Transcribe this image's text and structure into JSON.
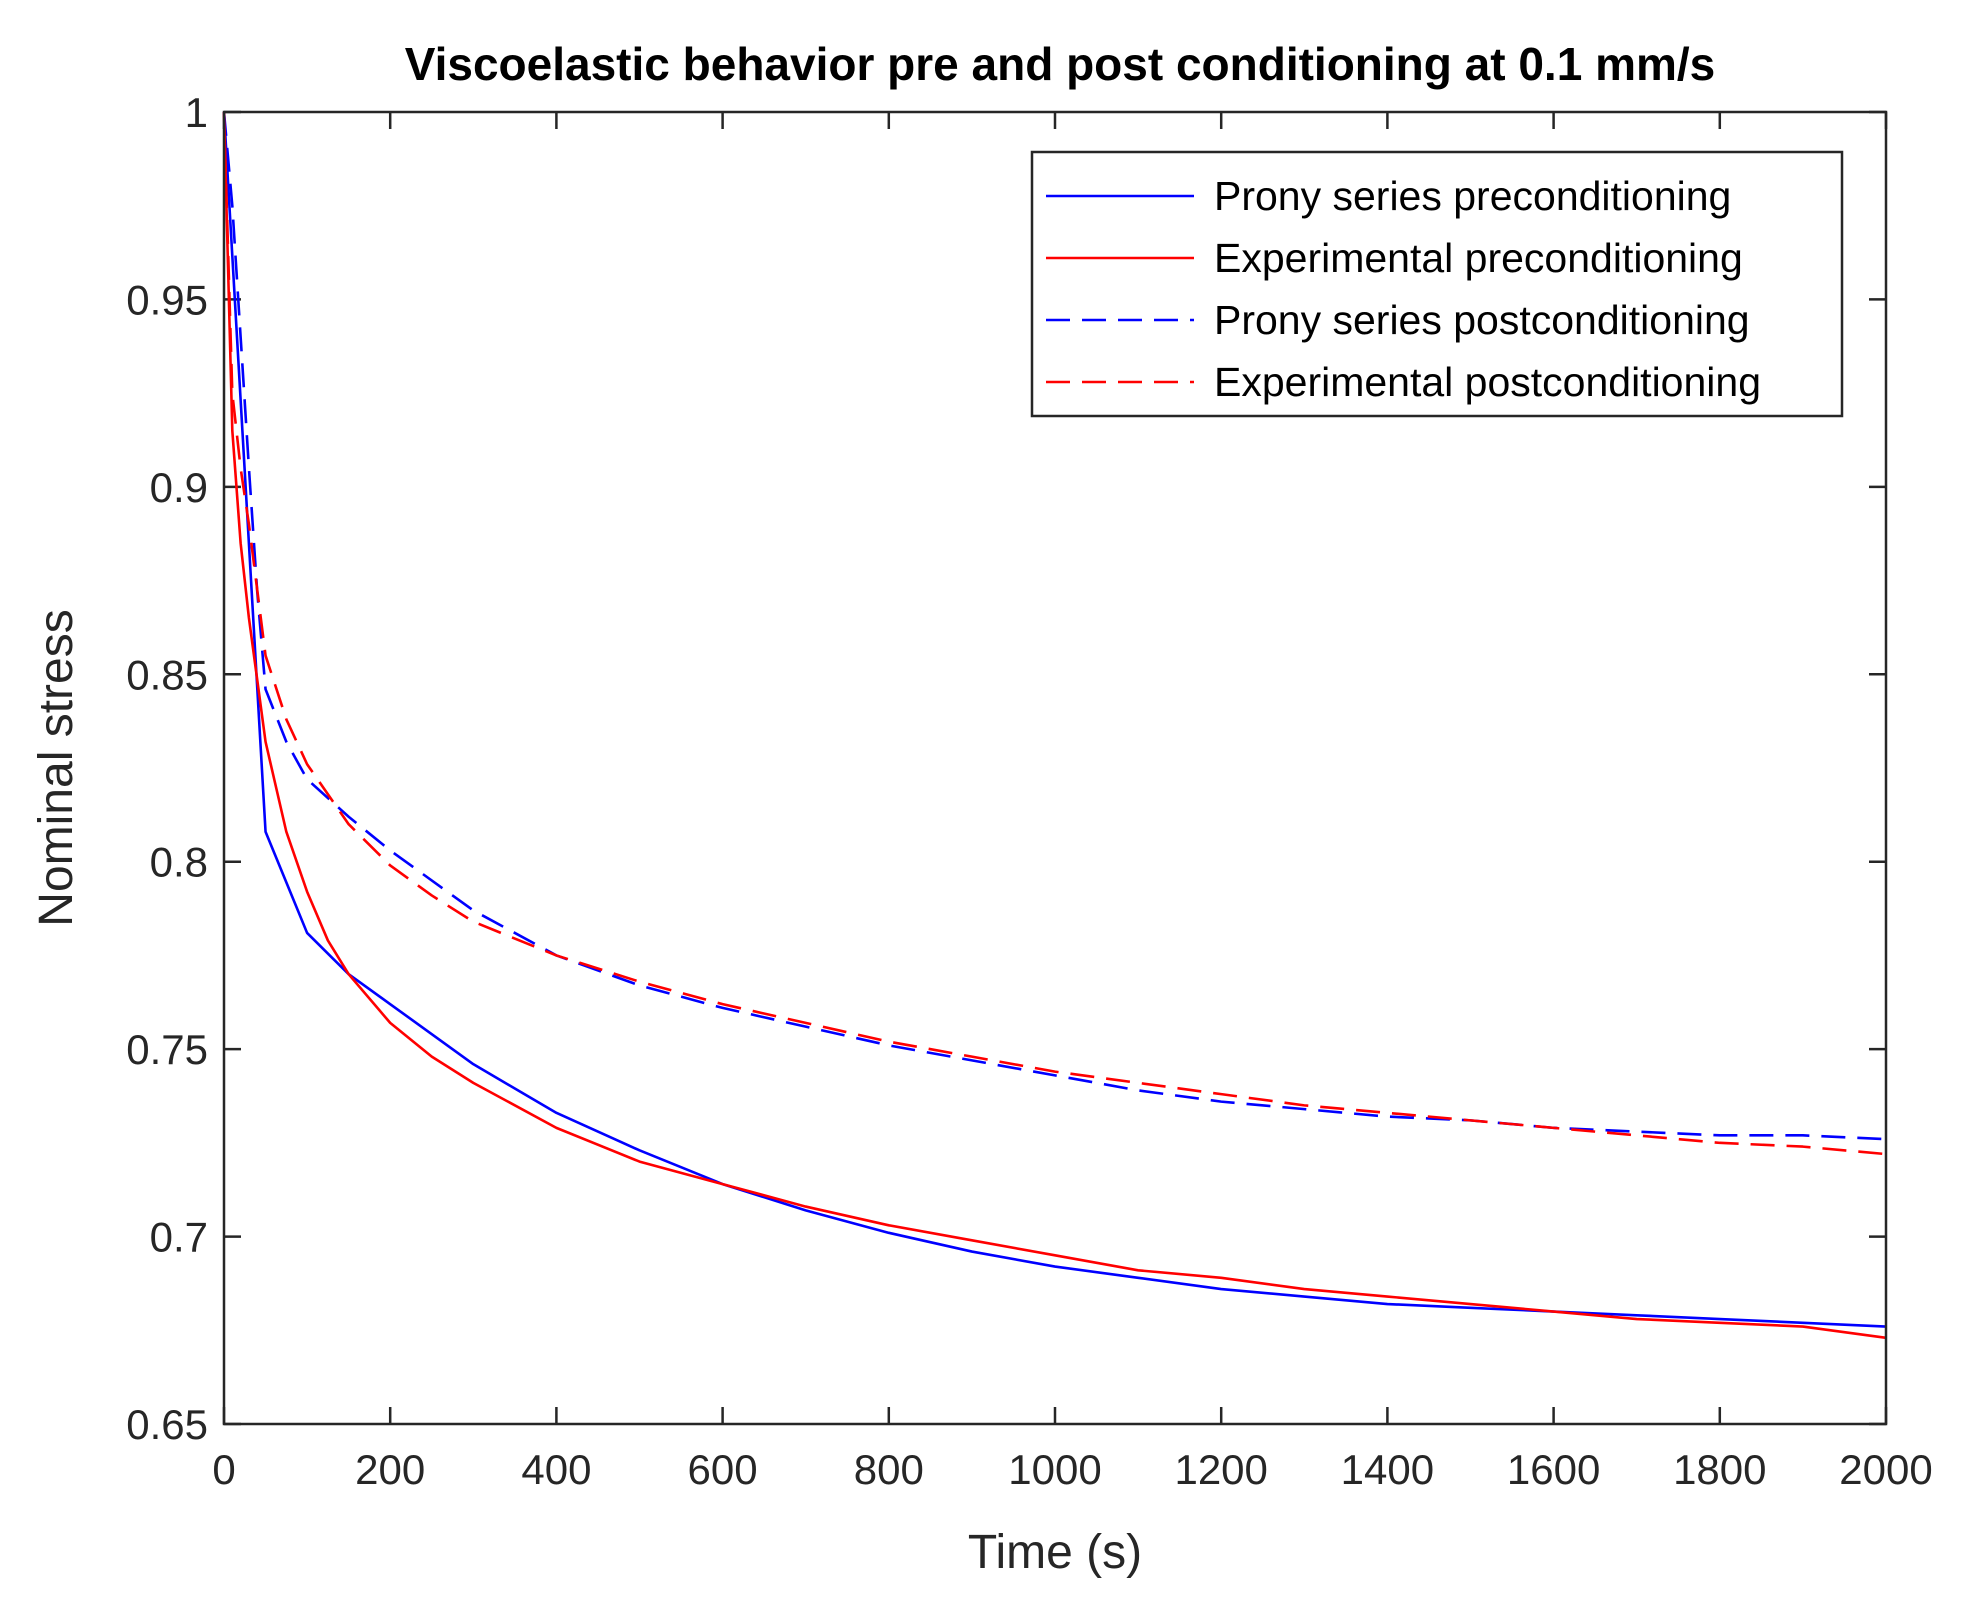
{
  "chart_data": {
    "type": "line",
    "title": "Viscoelastic behavior pre and post conditioning at 0.1 mm/s",
    "xlabel": "Time (s)",
    "ylabel": "Nominal stress",
    "xlim": [
      0,
      2000
    ],
    "ylim": [
      0.65,
      1
    ],
    "xticks": [
      0,
      200,
      400,
      600,
      800,
      1000,
      1200,
      1400,
      1600,
      1800,
      2000
    ],
    "xtick_labels": [
      "0",
      "200",
      "400",
      "600",
      "800",
      "1000",
      "1200",
      "1400",
      "1600",
      "1800",
      "2000"
    ],
    "yticks": [
      0.65,
      0.7,
      0.75,
      0.8,
      0.85,
      0.9,
      0.95,
      1
    ],
    "ytick_labels": [
      "0.65",
      "0.7",
      "0.75",
      "0.8",
      "0.85",
      "0.9",
      "0.95",
      "1"
    ],
    "grid": false,
    "legend_position": "top-right",
    "series": [
      {
        "name": "Prony series preconditioning",
        "color": "#0000ff",
        "style": "solid",
        "x": [
          0,
          50,
          100,
          150,
          200,
          300,
          400,
          500,
          600,
          700,
          800,
          900,
          1000,
          1100,
          1200,
          1300,
          1400,
          1500,
          1600,
          1700,
          1800,
          1900,
          2000
        ],
        "y": [
          1.0,
          0.808,
          0.781,
          0.77,
          0.762,
          0.746,
          0.733,
          0.723,
          0.714,
          0.707,
          0.701,
          0.696,
          0.692,
          0.689,
          0.686,
          0.684,
          0.682,
          0.681,
          0.68,
          0.679,
          0.678,
          0.677,
          0.676
        ]
      },
      {
        "name": "Experimental preconditioning",
        "color": "#ff0000",
        "style": "solid",
        "x": [
          0,
          10,
          20,
          30,
          50,
          75,
          100,
          125,
          150,
          200,
          250,
          300,
          400,
          500,
          600,
          700,
          800,
          900,
          1000,
          1100,
          1200,
          1300,
          1400,
          1500,
          1600,
          1700,
          1800,
          1900,
          2000
        ],
        "y": [
          1.0,
          0.915,
          0.885,
          0.865,
          0.832,
          0.808,
          0.792,
          0.779,
          0.77,
          0.757,
          0.748,
          0.741,
          0.729,
          0.72,
          0.714,
          0.708,
          0.703,
          0.699,
          0.695,
          0.691,
          0.689,
          0.686,
          0.684,
          0.682,
          0.68,
          0.678,
          0.677,
          0.676,
          0.673
        ]
      },
      {
        "name": "Prony series postconditioning",
        "color": "#0000ff",
        "style": "dashed",
        "x": [
          0,
          10,
          20,
          30,
          40,
          50,
          75,
          100,
          150,
          200,
          300,
          400,
          500,
          600,
          700,
          800,
          900,
          1000,
          1100,
          1200,
          1300,
          1400,
          1500,
          1600,
          1700,
          1800,
          1900,
          2000
        ],
        "y": [
          1.0,
          0.975,
          0.94,
          0.905,
          0.872,
          0.846,
          0.832,
          0.822,
          0.812,
          0.803,
          0.787,
          0.775,
          0.767,
          0.761,
          0.756,
          0.751,
          0.747,
          0.743,
          0.739,
          0.736,
          0.734,
          0.732,
          0.731,
          0.729,
          0.728,
          0.727,
          0.727,
          0.726
        ]
      },
      {
        "name": "Experimental postconditioning",
        "color": "#ff0000",
        "style": "dashed",
        "x": [
          0,
          10,
          20,
          30,
          50,
          75,
          100,
          150,
          200,
          250,
          300,
          400,
          500,
          600,
          700,
          800,
          900,
          1000,
          1100,
          1200,
          1300,
          1400,
          1500,
          1600,
          1700,
          1800,
          1900,
          2000
        ],
        "y": [
          1.0,
          0.925,
          0.905,
          0.89,
          0.855,
          0.838,
          0.826,
          0.81,
          0.799,
          0.791,
          0.784,
          0.775,
          0.768,
          0.762,
          0.757,
          0.752,
          0.748,
          0.744,
          0.741,
          0.738,
          0.735,
          0.733,
          0.731,
          0.729,
          0.727,
          0.725,
          0.724,
          0.722
        ]
      }
    ]
  }
}
